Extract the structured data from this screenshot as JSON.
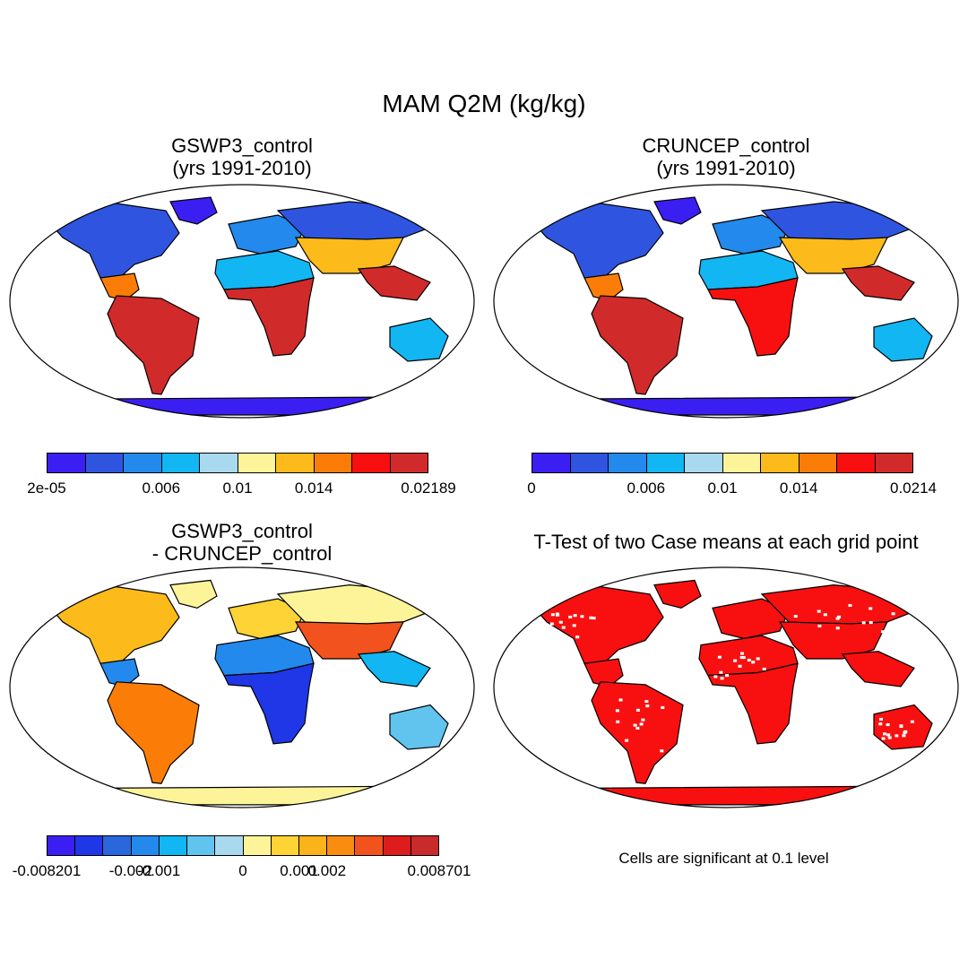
{
  "title": "MAM Q2M (kg/kg)",
  "panels": [
    {
      "id": "gswp3",
      "title_line1": "GSWP3_control",
      "title_line2": "(yrs 1991-2010)",
      "colorbar": {
        "colors": [
          "#3b1ff2",
          "#2f55e0",
          "#2389ec",
          "#12b6f2",
          "#a9d9ef",
          "#fdf49a",
          "#fcbb1a",
          "#fb7d07",
          "#f81010",
          "#d12a2a"
        ],
        "labels": [
          "2e-05",
          "0.006",
          "0.01",
          "0.014",
          "0.02189"
        ]
      }
    },
    {
      "id": "cruncep",
      "title_line1": "CRUNCEP_control",
      "title_line2": "(yrs 1991-2010)",
      "colorbar": {
        "colors": [
          "#3b1ff2",
          "#2f55e0",
          "#2389ec",
          "#12b6f2",
          "#a9d9ef",
          "#fdf49a",
          "#fcbb1a",
          "#fb7d07",
          "#f81010",
          "#d12a2a"
        ],
        "labels": [
          "0",
          "0.006",
          "0.01",
          "0.014",
          "0.0214"
        ]
      }
    },
    {
      "id": "diff",
      "title_line1": "GSWP3_control",
      "title_line2": "- CRUNCEP_control",
      "colorbar": {
        "colors": [
          "#3b1ff2",
          "#1f37e6",
          "#2a66dc",
          "#2389ec",
          "#12b6f2",
          "#60c4ee",
          "#a9d9ef",
          "#fdf49a",
          "#fdd335",
          "#fbb31a",
          "#f98d10",
          "#f2521d",
          "#dd1c1c",
          "#c92a2a"
        ],
        "labels": [
          "-0.008201",
          "-0.002",
          "-0.001",
          "0",
          "0.001",
          "0.002",
          "0.008701"
        ]
      }
    },
    {
      "id": "ttest",
      "title_line1": "T-Test of two Case means at each grid point",
      "note": "Cells are significant at 0.1 level"
    }
  ],
  "regions": [
    {
      "name": "North America",
      "gswp3": "#2f55e0",
      "cruncep": "#2f55e0",
      "diff": "#fcbb1a"
    },
    {
      "name": "Central America",
      "gswp3": "#fb7d07",
      "cruncep": "#fb7d07",
      "diff": "#2389ec"
    },
    {
      "name": "South America",
      "gswp3": "#d12a2a",
      "cruncep": "#d12a2a",
      "diff": "#fb7d07"
    },
    {
      "name": "Europe",
      "gswp3": "#2389ec",
      "cruncep": "#2389ec",
      "diff": "#fdd335"
    },
    {
      "name": "North Africa",
      "gswp3": "#12b6f2",
      "cruncep": "#12b6f2",
      "diff": "#2389ec"
    },
    {
      "name": "Central Africa",
      "gswp3": "#d12a2a",
      "cruncep": "#f81010",
      "diff": "#1f37e6"
    },
    {
      "name": "Siberia",
      "gswp3": "#2f55e0",
      "cruncep": "#2f55e0",
      "diff": "#fdf49a"
    },
    {
      "name": "Asia",
      "gswp3": "#fcbb1a",
      "cruncep": "#fcbb1a",
      "diff": "#f2521d"
    },
    {
      "name": "Maritime Continent",
      "gswp3": "#d12a2a",
      "cruncep": "#d12a2a",
      "diff": "#12b6f2"
    },
    {
      "name": "Australia",
      "gswp3": "#12b6f2",
      "cruncep": "#12b6f2",
      "diff": "#60c4ee"
    },
    {
      "name": "Greenland",
      "gswp3": "#3b1ff2",
      "cruncep": "#3b1ff2",
      "diff": "#fdf49a"
    },
    {
      "name": "Antarctica",
      "gswp3": "#3b1ff2",
      "cruncep": "#3b1ff2",
      "diff": "#fdf49a"
    }
  ],
  "ttest_color": "#f81010"
}
